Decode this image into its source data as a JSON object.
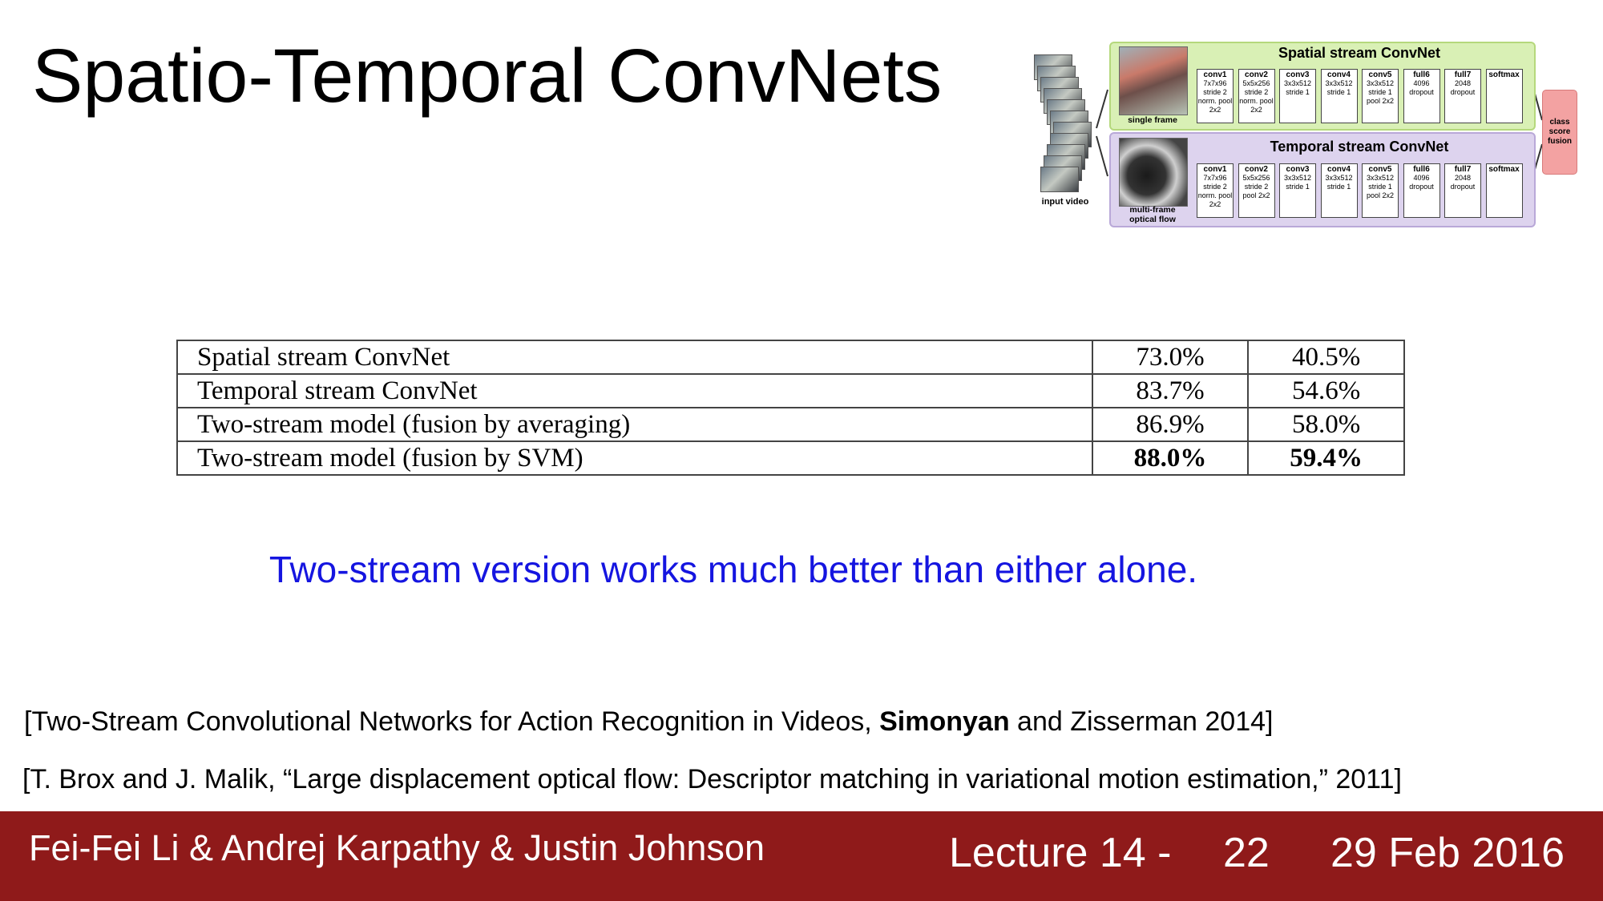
{
  "slide": {
    "title": "Spatio-Temporal ConvNets",
    "highlight": "Two-stream version works much better than either alone."
  },
  "diagram": {
    "input_label": "input video",
    "spatial": {
      "title": "Spatial stream ConvNet",
      "image_label": "single frame",
      "layers": [
        {
          "name": "conv1",
          "details": "7x7x96 stride 2 norm. pool 2x2"
        },
        {
          "name": "conv2",
          "details": "5x5x256 stride 2 norm. pool 2x2"
        },
        {
          "name": "conv3",
          "details": "3x3x512 stride 1"
        },
        {
          "name": "conv4",
          "details": "3x3x512 stride 1"
        },
        {
          "name": "conv5",
          "details": "3x3x512 stride 1 pool 2x2"
        },
        {
          "name": "full6",
          "details": "4096 dropout"
        },
        {
          "name": "full7",
          "details": "2048 dropout"
        },
        {
          "name": "softmax",
          "details": ""
        }
      ]
    },
    "temporal": {
      "title": "Temporal stream ConvNet",
      "image_label": "multi-frame optical flow",
      "layers": [
        {
          "name": "conv1",
          "details": "7x7x96 stride 2 norm. pool 2x2"
        },
        {
          "name": "conv2",
          "details": "5x5x256 stride 2 pool 2x2"
        },
        {
          "name": "conv3",
          "details": "3x3x512 stride 1"
        },
        {
          "name": "conv4",
          "details": "3x3x512 stride 1"
        },
        {
          "name": "conv5",
          "details": "3x3x512 stride 1 pool 2x2"
        },
        {
          "name": "full6",
          "details": "4096 dropout"
        },
        {
          "name": "full7",
          "details": "2048 dropout"
        },
        {
          "name": "softmax",
          "details": ""
        }
      ]
    },
    "fusion_label": "class score fusion"
  },
  "table": {
    "rows": [
      {
        "method": "Spatial stream ConvNet",
        "ucf101": "73.0%",
        "hmdb51": "40.5%",
        "bold": false
      },
      {
        "method": "Temporal stream ConvNet",
        "ucf101": "83.7%",
        "hmdb51": "54.6%",
        "bold": false
      },
      {
        "method": "Two-stream model (fusion by averaging)",
        "ucf101": "86.9%",
        "hmdb51": "58.0%",
        "bold": false
      },
      {
        "method": "Two-stream model (fusion by SVM)",
        "ucf101": "88.0%",
        "hmdb51": "59.4%",
        "bold": true
      }
    ]
  },
  "references": {
    "ref1_pre": "[Two-Stream Convolutional Networks for Action Recognition in Videos, ",
    "ref1_bold": "Simonyan",
    "ref1_post": " and Zisserman 2014]",
    "ref2": "[T. Brox and J. Malik, “Large displacement optical flow: Descriptor matching in variational motion estimation,” 2011]"
  },
  "footer": {
    "authors": "Fei-Fei Li & Andrej Karpathy & Justin Johnson",
    "lecture": "Lecture 14 -",
    "page": "22",
    "date": "29 Feb 2016"
  },
  "colors": {
    "footer_bg": "#8f1a1a",
    "highlight_text": "#1515e0",
    "spatial_bg": "#d9f0b5",
    "temporal_bg": "#ddd3ee",
    "fusion_bg": "#f3a2a2"
  }
}
